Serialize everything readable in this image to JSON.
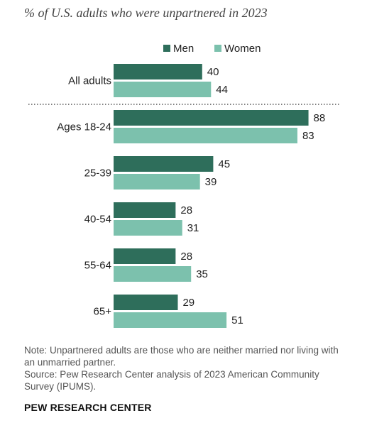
{
  "subtitle": "% of U.S. adults who were unpartnered in 2023",
  "colors": {
    "men": "#2e6e5b",
    "women": "#7cc1ad",
    "divider": "#555555"
  },
  "chart_data": {
    "type": "bar",
    "orientation": "horizontal",
    "categories": [
      "All adults",
      "Ages 18-24",
      "25-39",
      "40-54",
      "55-64",
      "65+"
    ],
    "series": [
      {
        "name": "Men",
        "values": [
          40,
          88,
          45,
          28,
          28,
          29
        ]
      },
      {
        "name": "Women",
        "values": [
          44,
          83,
          39,
          31,
          35,
          51
        ]
      }
    ],
    "legend_position": "top",
    "grid": false
  },
  "note": "Note: Unpartnered adults are those who are neither married nor living with an unmarried partner.",
  "source": "Source: Pew Research Center analysis of 2023 American Community Survey (IPUMS).",
  "brand": "PEW RESEARCH CENTER"
}
